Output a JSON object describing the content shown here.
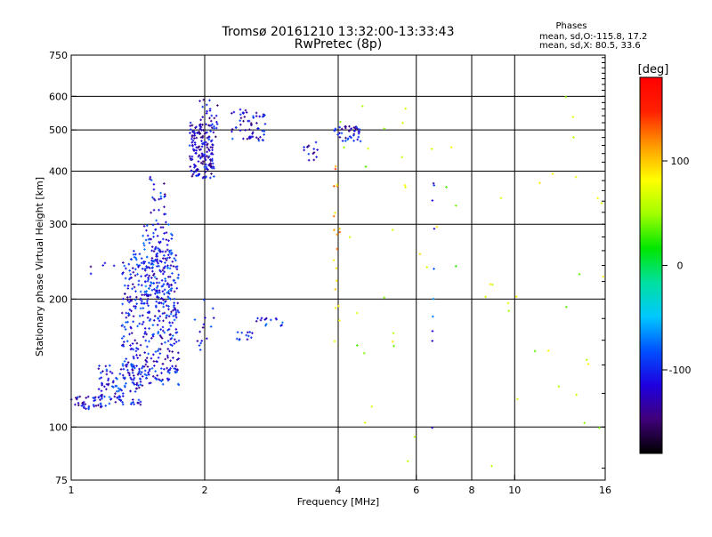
{
  "chart_data": {
    "type": "scatter",
    "title": "Tromsø 20161210 13:32:00-13:33:43",
    "subtitle": "RwPretec (8p)",
    "xlabel": "Frequency [MHz]",
    "ylabel": "Stationary phase Virtual Height [km]",
    "x_scale": "log",
    "y_scale": "log",
    "xlim": [
      1,
      16
    ],
    "ylim": [
      75,
      750
    ],
    "x_ticks": [
      {
        "value": 1,
        "label": "1"
      },
      {
        "value": 2,
        "label": "2"
      },
      {
        "value": 4,
        "label": "4"
      },
      {
        "value": 6,
        "label": "6"
      },
      {
        "value": 8,
        "label": "8"
      },
      {
        "value": 10,
        "label": "10"
      },
      {
        "value": 16,
        "label": "16"
      }
    ],
    "y_ticks": [
      {
        "value": 75,
        "label": "75"
      },
      {
        "value": 100,
        "label": "100"
      },
      {
        "value": 200,
        "label": "200"
      },
      {
        "value": 300,
        "label": "300"
      },
      {
        "value": 400,
        "label": "400"
      },
      {
        "value": 500,
        "label": "500"
      },
      {
        "value": 600,
        "label": "600"
      },
      {
        "value": 750,
        "label": "750"
      }
    ],
    "x_grid": [
      2,
      4,
      6,
      8,
      10
    ],
    "y_grid": [
      100,
      200,
      300,
      400,
      500,
      600
    ],
    "grid": true,
    "phase_stats": {
      "heading": "Phases",
      "line1": "mean, sd,O:-115.8, 17.2",
      "line2": "mean, sd,X:  80.5, 33.6"
    },
    "colorbar": {
      "label": "[deg]",
      "range": [
        -180,
        180
      ],
      "ticks": [
        {
          "value": 100,
          "label": "100"
        },
        {
          "value": 0,
          "label": "0"
        },
        {
          "value": -100,
          "label": "-100"
        }
      ],
      "stops": [
        "#000000",
        "#40007a",
        "#1e00e0",
        "#0050ff",
        "#00c8ff",
        "#00e0a0",
        "#00e600",
        "#a0ff00",
        "#ffff00",
        "#ff9a00",
        "#ff2000",
        "#ff0000"
      ]
    },
    "scatter_regions": [
      {
        "x_range": [
          1.0,
          1.18
        ],
        "y_range": [
          110,
          118
        ],
        "count": 40,
        "phase": -115
      },
      {
        "x_range": [
          1.15,
          1.45
        ],
        "y_range": [
          112,
          140
        ],
        "count": 110,
        "phase": -105
      },
      {
        "x_range": [
          1.3,
          1.75
        ],
        "y_range": [
          125,
          260
        ],
        "count": 420,
        "phase": -110
      },
      {
        "x_range": [
          1.45,
          1.7
        ],
        "y_range": [
          200,
          300
        ],
        "count": 120,
        "phase": -100
      },
      {
        "x_range": [
          1.5,
          1.65
        ],
        "y_range": [
          300,
          390
        ],
        "count": 25,
        "phase": -110
      },
      {
        "x_range": [
          1.85,
          2.1
        ],
        "y_range": [
          385,
          520
        ],
        "count": 170,
        "phase": -120
      },
      {
        "x_range": [
          1.95,
          2.15
        ],
        "y_range": [
          480,
          590
        ],
        "count": 25,
        "phase": -120
      },
      {
        "x_range": [
          2.3,
          2.75
        ],
        "y_range": [
          470,
          560
        ],
        "count": 60,
        "phase": -115
      },
      {
        "x_range": [
          3.3,
          3.6
        ],
        "y_range": [
          420,
          470
        ],
        "count": 15,
        "phase": -110
      },
      {
        "x_range": [
          3.9,
          4.5
        ],
        "y_range": [
          470,
          510
        ],
        "count": 40,
        "phase": -115
      },
      {
        "x_range": [
          2.35,
          2.6
        ],
        "y_range": [
          160,
          168
        ],
        "count": 12,
        "phase": -110
      },
      {
        "x_range": [
          2.6,
          3.0
        ],
        "y_range": [
          172,
          182
        ],
        "count": 15,
        "phase": -105
      },
      {
        "x_range": [
          1.9,
          2.1
        ],
        "y_range": [
          150,
          200
        ],
        "count": 15,
        "phase": -110
      },
      {
        "x_range": [
          1.1,
          1.4
        ],
        "y_range": [
          220,
          245
        ],
        "count": 10,
        "phase": -110
      },
      {
        "x_range": [
          4.0,
          16.0
        ],
        "y_range": [
          80,
          600
        ],
        "count": 60,
        "phase": 60
      },
      {
        "x_range": [
          3.9,
          4.05
        ],
        "y_range": [
          150,
          420
        ],
        "count": 20,
        "phase": 110
      },
      {
        "x_range": [
          6.5,
          6.6
        ],
        "y_range": [
          90,
          530
        ],
        "count": 10,
        "phase": -100
      }
    ]
  }
}
